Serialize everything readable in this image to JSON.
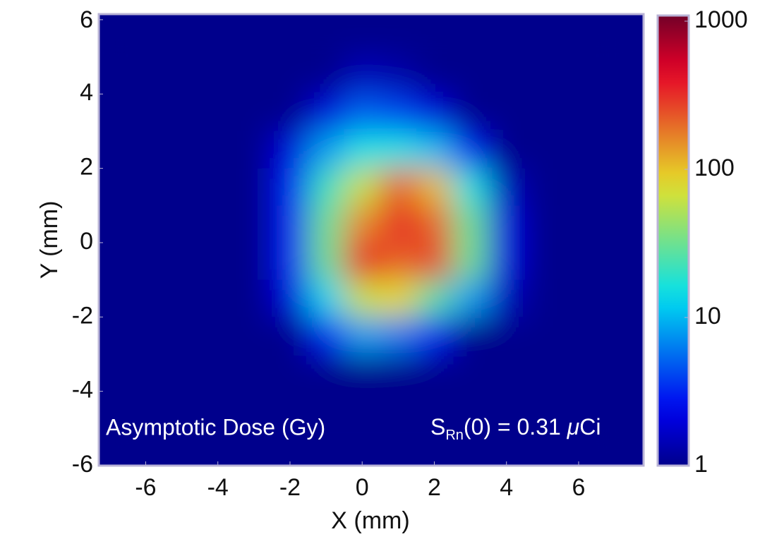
{
  "chart_data": {
    "type": "heatmap",
    "xlabel": "X (mm)",
    "ylabel": "Y (mm)",
    "annotations": [
      "Asymptotic Dose (Gy)",
      [
        "S",
        "Rn",
        "(0) = 0.31 ",
        "μ",
        "Ci"
      ]
    ],
    "x": [
      -7,
      -6,
      -5,
      -4,
      -3,
      -2,
      -1,
      0,
      1,
      2,
      3,
      4,
      5,
      6,
      7
    ],
    "y": [
      5.5,
      4.5,
      3.5,
      2.5,
      1.5,
      0.5,
      -0.5,
      -1.5,
      -2.5,
      -3.5,
      -4.5,
      -5.5
    ],
    "z": [
      [
        1,
        1,
        1,
        1,
        1,
        1,
        1,
        1,
        1,
        1,
        1,
        1,
        1,
        1,
        1
      ],
      [
        1,
        1,
        1,
        1,
        1,
        1,
        1,
        1.5,
        1.3,
        1,
        1,
        1,
        1,
        1,
        1
      ],
      [
        1,
        1,
        1,
        1,
        1,
        1,
        2,
        5,
        4,
        2,
        1,
        1,
        1,
        1,
        1
      ],
      [
        1,
        1,
        1,
        1,
        1,
        2,
        8,
        15,
        15,
        10,
        3,
        1,
        1,
        1,
        1
      ],
      [
        1,
        1,
        1,
        1,
        1,
        3,
        20,
        60,
        200,
        100,
        15,
        1.5,
        1,
        1,
        1
      ],
      [
        1,
        1,
        1,
        1,
        1,
        3,
        30,
        150,
        300,
        200,
        30,
        2,
        1,
        1,
        1
      ],
      [
        1,
        1,
        1,
        1,
        1,
        3,
        30,
        350,
        200,
        250,
        30,
        2,
        1,
        1,
        1
      ],
      [
        1,
        1,
        1,
        1,
        1,
        2,
        12,
        60,
        80,
        25,
        8,
        1.5,
        1,
        1,
        1
      ],
      [
        1,
        1,
        1,
        1,
        1,
        1,
        3,
        8,
        6,
        3,
        1,
        1,
        1,
        1,
        1
      ],
      [
        1,
        1,
        1,
        1,
        1,
        1,
        1,
        1,
        1,
        1,
        1,
        1,
        1,
        1,
        1
      ],
      [
        1,
        1,
        1,
        1,
        1,
        1,
        1,
        1,
        1,
        1,
        1,
        1,
        1,
        1,
        1
      ],
      [
        1,
        1,
        1,
        1,
        1,
        1,
        1,
        1,
        1,
        1,
        1,
        1,
        1,
        1,
        1
      ]
    ],
    "xlim": [
      -7.3,
      7.8
    ],
    "ylim": [
      -6,
      6.15
    ],
    "xticks": [
      -6,
      -4,
      -2,
      0,
      2,
      4,
      6
    ],
    "yticks": [
      -6,
      -4,
      -2,
      0,
      2,
      4,
      6
    ],
    "colormap": "jet",
    "colorbar": {
      "scale": "log",
      "lim": [
        1,
        1000
      ],
      "ticks": [
        1,
        10,
        100,
        1000
      ]
    }
  }
}
